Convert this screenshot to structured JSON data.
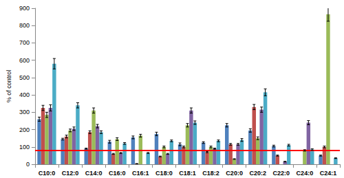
{
  "chart_data": {
    "type": "bar",
    "y_label": "% of control",
    "categories": [
      "C10:0",
      "C12:0",
      "C14:0",
      "C16:0",
      "C16:1",
      "C18:0",
      "C18:1",
      "C18:2",
      "C20:0",
      "C20:2",
      "C22:0",
      "C24:0",
      "C24:1"
    ],
    "series": [
      {
        "color": "#4f81bd",
        "values": [
          260,
          145,
          90,
          130,
          155,
          175,
          115,
          125,
          225,
          195,
          105,
          null,
          50
        ],
        "errors": [
          12,
          5,
          3,
          8,
          8,
          10,
          8,
          5,
          10,
          10,
          5,
          null,
          3
        ]
      },
      {
        "color": "#c0504d",
        "values": [
          325,
          160,
          185,
          60,
          3,
          45,
          100,
          70,
          115,
          330,
          50,
          null,
          100
        ],
        "errors": [
          15,
          8,
          8,
          3,
          1,
          2,
          5,
          3,
          5,
          15,
          3,
          null,
          5
        ]
      },
      {
        "color": "#9bbb59",
        "values": [
          285,
          195,
          310,
          145,
          165,
          100,
          225,
          100,
          30,
          150,
          null,
          80,
          865
        ],
        "errors": [
          15,
          8,
          15,
          8,
          8,
          5,
          10,
          5,
          2,
          8,
          null,
          4,
          40
        ]
      },
      {
        "color": "#8064a2",
        "values": [
          325,
          205,
          220,
          65,
          null,
          60,
          310,
          90,
          115,
          315,
          15,
          240,
          null
        ],
        "errors": [
          18,
          10,
          10,
          3,
          null,
          3,
          15,
          3,
          5,
          15,
          2,
          12,
          null
        ]
      },
      {
        "color": "#4bacc6",
        "values": [
          580,
          340,
          185,
          120,
          65,
          135,
          240,
          135,
          140,
          415,
          110,
          85,
          35
        ],
        "errors": [
          30,
          15,
          8,
          5,
          3,
          5,
          10,
          5,
          8,
          20,
          5,
          4,
          2
        ]
      }
    ],
    "reference_line": 80,
    "ylim": [
      0,
      900
    ],
    "yticks": [
      0,
      100,
      200,
      300,
      400,
      500,
      600,
      700,
      800,
      900
    ],
    "grid": false
  }
}
